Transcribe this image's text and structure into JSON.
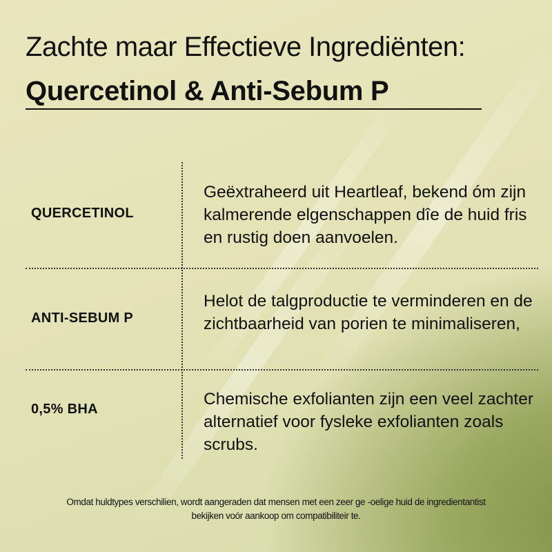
{
  "title": {
    "line1": "Zachte maar Effectieve Ingrediënten:",
    "line2": "Quercetinol & Anti-Sebum P"
  },
  "ingredients": [
    {
      "name": "QUERCETINOL",
      "description": "Geëxtraheerd uit Heartleaf, bekend óm zijn kalmerende elgenschappen dîe de huid fris en rustig doen aanvoelen."
    },
    {
      "name": "ANTI-SEBUM P",
      "description": "Helot de talgproductie te verminderen en de zichtbaarheid van porien te minimaliseren,"
    },
    {
      "name": "0,5% BHA",
      "description": "Chemische exfolianten zijn een veel zachter alternatief voor fysleke exfolianten zoals scrubs."
    }
  ],
  "footnote": {
    "line1": "Omdat huldtypes verschilien, wordt aangeraden dat mensen met een zeer ge -oelige huid de ingredientantist",
    "line2": "bekijken voór aankoop om compatibiliteir te."
  },
  "colors": {
    "background": "#e6e3b8",
    "corner_green": "#7f9148",
    "text": "#111111"
  }
}
